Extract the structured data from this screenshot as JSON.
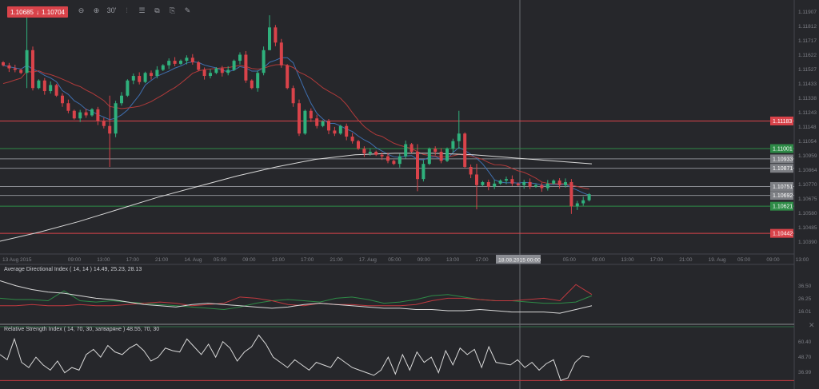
{
  "quote": {
    "bid": "1.10685",
    "ask": "1.10704",
    "direction_icon": "arrow-down-icon"
  },
  "toolbar": [
    {
      "name": "zoom-out-icon",
      "glyph": "⊖"
    },
    {
      "name": "zoom-in-icon",
      "glyph": "⊕"
    },
    {
      "name": "timeframe-icon",
      "glyph": "30'"
    },
    {
      "name": "chart-type-icon",
      "glyph": "⫶"
    },
    {
      "name": "indicators-icon",
      "glyph": "☰"
    },
    {
      "name": "screenshot-icon",
      "glyph": "⧉"
    },
    {
      "name": "objects-icon",
      "glyph": "⎘"
    },
    {
      "name": "draw-icon",
      "glyph": "✎"
    }
  ],
  "colors": {
    "background": "#26272b",
    "up": "#2fb17c",
    "down": "#d9434a",
    "ma_fast": "#3f6fb0",
    "ma_mid": "#b03a3a",
    "ma_slow": "#d8d8d8",
    "grid_line": "#8a8c92"
  },
  "price_axis": {
    "ticks": [
      "1.11907",
      "1.11812",
      "1.11717",
      "1.11622",
      "1.11527",
      "1.11433",
      "1.11338",
      "1.11243",
      "1.11148",
      "1.11054",
      "1.10959",
      "1.10864",
      "1.10770",
      "1.10675",
      "1.10580",
      "1.10485",
      "1.10390"
    ],
    "levels": [
      {
        "value": "1.11183",
        "color": "#d9434a"
      },
      {
        "value": "1.11001",
        "color": "#2e8b47"
      },
      {
        "value": "1.10933",
        "color": "#8a8c92"
      },
      {
        "value": "1.10871",
        "color": "#8a8c92"
      },
      {
        "value": "1.10751",
        "color": "#8a8c92"
      },
      {
        "value": "1.10692",
        "color": "#8a8c92"
      },
      {
        "value": "1.10621",
        "color": "#2e8b47"
      },
      {
        "value": "1.10442",
        "color": "#d9434a"
      }
    ]
  },
  "time_axis": {
    "labels": [
      "13 Aug 2015",
      "",
      "09:00",
      "13:00",
      "17:00",
      "21:00",
      "14. Aug",
      "05:00",
      "09:00",
      "13:00",
      "17:00",
      "21:00",
      "17. Aug",
      "05:00",
      "09:00",
      "13:00",
      "17:00",
      "",
      "05:00",
      "09:00",
      "13:00",
      "17:00",
      "21:00",
      "19. Aug",
      "05:00",
      "09:00",
      "13:00"
    ],
    "crosshair_label": "18.08.2015 00:00"
  },
  "chart_data": {
    "type": "candlestick",
    "closes": [
      1.1155,
      1.1153,
      1.1152,
      1.115,
      1.1165,
      1.114,
      1.1145,
      1.1138,
      1.1142,
      1.1135,
      1.113,
      1.1125,
      1.112,
      1.1124,
      1.1122,
      1.1126,
      1.1118,
      1.1115,
      1.111,
      1.113,
      1.1135,
      1.1145,
      1.1148,
      1.1144,
      1.115,
      1.1148,
      1.1152,
      1.1155,
      1.1158,
      1.1156,
      1.1158,
      1.116,
      1.1157,
      1.1152,
      1.1148,
      1.115,
      1.1153,
      1.115,
      1.1152,
      1.1158,
      1.1162,
      1.1145,
      1.114,
      1.115,
      1.1165,
      1.118,
      1.117,
      1.1155,
      1.114,
      1.113,
      1.111,
      1.1125,
      1.112,
      1.1115,
      1.1118,
      1.1112,
      1.111,
      1.1115,
      1.1108,
      1.1105,
      1.11,
      1.1097,
      1.1098,
      1.1096,
      1.1095,
      1.1092,
      1.109,
      1.1095,
      1.1103,
      1.1098,
      1.108,
      1.109,
      1.11,
      1.1098,
      1.1092,
      1.11,
      1.1105,
      1.111,
      1.1088,
      1.1083,
      1.1076,
      1.1078,
      1.1075,
      1.1077,
      1.1079,
      1.108,
      1.1077,
      1.1076,
      1.1078,
      1.1075,
      1.1076,
      1.1074,
      1.1077,
      1.1079,
      1.1076,
      1.1078,
      1.1062,
      1.1064,
      1.1066,
      1.107
    ],
    "first_open": 1.1157,
    "spikes": {
      "4": [
        1.119,
        1.114
      ],
      "18": [
        1.1135,
        1.1088
      ],
      "45": [
        1.1188,
        1.1165
      ],
      "70": [
        1.1103,
        1.1072
      ],
      "77": [
        1.1125,
        1.11
      ],
      "80": [
        1.109,
        1.106
      ],
      "96": [
        1.108,
        1.1057
      ]
    },
    "ma_slow": [
      1.1039,
      1.1045,
      1.1052,
      1.106,
      1.1068,
      1.1075,
      1.1082,
      1.1088,
      1.1093,
      1.1096,
      1.1097,
      1.1097,
      1.1096,
      1.1094,
      1.1092,
      1.109
    ],
    "ylim": [
      1.1039,
      1.11907
    ]
  },
  "adx": {
    "label": "Average Directional Index ( 14, 14 ) 14.49, 25.23, 28.13",
    "ticks": [
      "36.50",
      "26.25",
      "16.01"
    ],
    "ylim": [
      16.01,
      36.5
    ],
    "adx": [
      40,
      36,
      33,
      31,
      30,
      28,
      26,
      25,
      23,
      21,
      20,
      19,
      21,
      22,
      21,
      20,
      19,
      18,
      19,
      21,
      22,
      21,
      20,
      19,
      18,
      18,
      17,
      17,
      16,
      16,
      17,
      16,
      15,
      15,
      15,
      14,
      17,
      20
    ],
    "plus_di": [
      26,
      25,
      25,
      24,
      32,
      24,
      23,
      24,
      23,
      22,
      21,
      20,
      19,
      18,
      17,
      19,
      22,
      24,
      25,
      24,
      23,
      26,
      27,
      25,
      22,
      23,
      25,
      28,
      29,
      27,
      25,
      24,
      24,
      23,
      22,
      22,
      23,
      28
    ],
    "minus_di": [
      20,
      20,
      21,
      20,
      20,
      21,
      20,
      20,
      21,
      22,
      23,
      22,
      20,
      21,
      22,
      27,
      26,
      24,
      21,
      20,
      22,
      21,
      21,
      20,
      20,
      20,
      21,
      24,
      26,
      26,
      25,
      24,
      24,
      25,
      26,
      24,
      37,
      29
    ]
  },
  "rsi": {
    "label": "Relative Strength Index ( 14, 70, 30, затваряне ) 48.55, 70, 30",
    "ticks": [
      "60.40",
      "48.70",
      "36.99"
    ],
    "ylim": [
      30,
      66
    ],
    "values": [
      50,
      46,
      62,
      44,
      40,
      48,
      42,
      38,
      45,
      36,
      40,
      38,
      50,
      54,
      48,
      57,
      52,
      50,
      55,
      58,
      53,
      45,
      48,
      55,
      53,
      52,
      62,
      56,
      50,
      58,
      48,
      60,
      55,
      45,
      52,
      56,
      65,
      58,
      48,
      44,
      40,
      46,
      42,
      38,
      44,
      42,
      40,
      48,
      44,
      40,
      38,
      36,
      34,
      38,
      48,
      35,
      50,
      38,
      52,
      44,
      48,
      36,
      53,
      42,
      55,
      50,
      54,
      40,
      56,
      44,
      43,
      42,
      46,
      40,
      44,
      38,
      43,
      46,
      30,
      32,
      44,
      49,
      48
    ]
  }
}
